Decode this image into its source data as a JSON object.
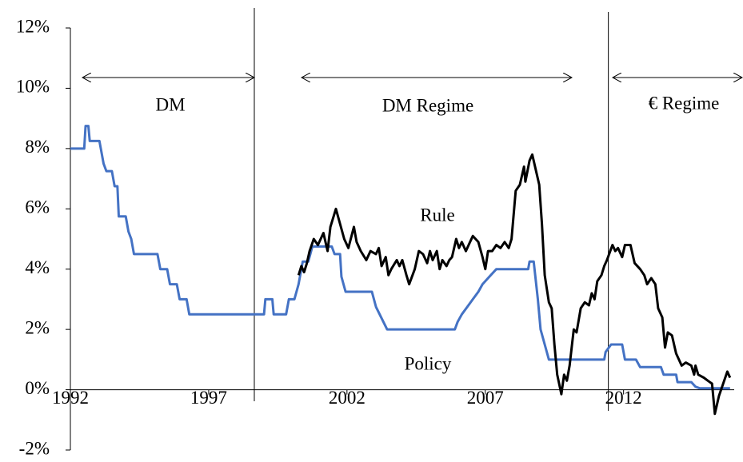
{
  "chart_data": {
    "type": "line",
    "xlim": [
      1992,
      2016
    ],
    "xticks": [
      1992,
      1997,
      2002,
      2007,
      2012
    ],
    "ylim": [
      -2,
      12
    ],
    "yticks": [
      {
        "value": -2,
        "label": "-2%"
      },
      {
        "value": 0,
        "label": "0%"
      },
      {
        "value": 2,
        "label": "2%"
      },
      {
        "value": 4,
        "label": "4%"
      },
      {
        "value": 6,
        "label": "6%"
      },
      {
        "value": 8,
        "label": "8%"
      },
      {
        "value": 10,
        "label": "10%"
      },
      {
        "value": 12,
        "label": "12%"
      }
    ],
    "annotations": [
      "DM",
      "DM Regime",
      "€ Regime",
      "Rule",
      "Policy"
    ],
    "vlines": [
      1998.65,
      2011.45
    ],
    "series": [
      {
        "name": "Policy",
        "color": "#4472c4",
        "x": [
          1992.0,
          1992.5,
          1992.55,
          1992.65,
          1992.7,
          1993.05,
          1993.2,
          1993.3,
          1993.5,
          1993.6,
          1993.7,
          1993.75,
          1994.0,
          1994.1,
          1994.2,
          1994.3,
          1995.15,
          1995.25,
          1995.5,
          1995.6,
          1995.85,
          1995.95,
          1996.2,
          1996.3,
          1999.0,
          1999.05,
          1999.3,
          1999.35,
          1999.8,
          1999.9,
          2000.1,
          2000.25,
          2000.4,
          2000.6,
          2000.75,
          2001.45,
          2001.55,
          2001.75,
          2001.8,
          2001.95,
          2002.9,
          2003.05,
          2003.45,
          2005.9,
          2006.0,
          2006.15,
          2006.35,
          2006.55,
          2006.75,
          2006.9,
          2007.15,
          2007.4,
          2008.55,
          2008.6,
          2008.75,
          2008.9,
          2009.0,
          2009.15,
          2009.3,
          2011.3,
          2011.35,
          2011.55,
          2011.95,
          2012.05,
          2012.45,
          2012.6,
          2013.35,
          2013.45,
          2013.9,
          2013.95,
          2014.45,
          2014.6,
          2014.75,
          2015.85
        ],
        "values": [
          8,
          8,
          8.75,
          8.75,
          8.25,
          8.25,
          7.5,
          7.25,
          7.25,
          6.75,
          6.75,
          5.75,
          5.75,
          5.25,
          5.0,
          4.5,
          4.5,
          4.0,
          4.0,
          3.5,
          3.5,
          3.0,
          3.0,
          2.5,
          2.5,
          3.0,
          3.0,
          2.5,
          2.5,
          3.0,
          3.0,
          3.5,
          4.25,
          4.25,
          4.75,
          4.75,
          4.5,
          4.5,
          3.75,
          3.25,
          3.25,
          2.75,
          2.0,
          2.0,
          2.25,
          2.5,
          2.75,
          3.0,
          3.25,
          3.5,
          3.75,
          4.0,
          4.0,
          4.25,
          4.25,
          3.0,
          2.0,
          1.5,
          1.0,
          1.0,
          1.25,
          1.5,
          1.5,
          1.0,
          1.0,
          0.75,
          0.75,
          0.5,
          0.5,
          0.25,
          0.25,
          0.1,
          0.05,
          0.05
        ]
      },
      {
        "name": "Rule",
        "color": "#000000",
        "x": [
          2000.25,
          2000.35,
          2000.45,
          2000.55,
          2000.65,
          2000.8,
          2000.95,
          2001.15,
          2001.3,
          2001.4,
          2001.6,
          2001.75,
          2001.9,
          2002.05,
          2002.25,
          2002.35,
          2002.5,
          2002.7,
          2002.85,
          2003.05,
          2003.15,
          2003.25,
          2003.4,
          2003.5,
          2003.6,
          2003.8,
          2003.9,
          2004.0,
          2004.15,
          2004.25,
          2004.45,
          2004.6,
          2004.75,
          2004.9,
          2005.0,
          2005.1,
          2005.25,
          2005.35,
          2005.45,
          2005.6,
          2005.7,
          2005.8,
          2005.95,
          2006.05,
          2006.15,
          2006.3,
          2006.45,
          2006.55,
          2006.75,
          2006.9,
          2007.0,
          2007.1,
          2007.25,
          2007.4,
          2007.55,
          2007.7,
          2007.85,
          2007.95,
          2008.1,
          2008.25,
          2008.4,
          2008.45,
          2008.6,
          2008.7,
          2008.8,
          2008.95,
          2009.05,
          2009.15,
          2009.3,
          2009.4,
          2009.5,
          2009.6,
          2009.75,
          2009.85,
          2009.95,
          2010.05,
          2010.2,
          2010.3,
          2010.45,
          2010.6,
          2010.75,
          2010.85,
          2010.95,
          2011.05,
          2011.2,
          2011.3,
          2011.4,
          2011.6,
          2011.7,
          2011.8,
          2011.95,
          2012.05,
          2012.25,
          2012.4,
          2012.6,
          2012.75,
          2012.85,
          2013.0,
          2013.15,
          2013.25,
          2013.4,
          2013.5,
          2013.6,
          2013.75,
          2013.9,
          2014.1,
          2014.25,
          2014.45,
          2014.55,
          2014.6,
          2014.7,
          2014.9,
          2015.05,
          2015.2,
          2015.3,
          2015.45,
          2015.6,
          2015.75,
          2015.85
        ],
        "values": [
          3.8,
          4.1,
          3.9,
          4.2,
          4.6,
          5.0,
          4.8,
          5.2,
          4.6,
          5.4,
          6.0,
          5.5,
          5.0,
          4.7,
          5.4,
          4.9,
          4.6,
          4.3,
          4.6,
          4.5,
          4.7,
          4.1,
          4.4,
          3.8,
          4.0,
          4.3,
          4.1,
          4.3,
          3.8,
          3.5,
          4.0,
          4.6,
          4.5,
          4.2,
          4.6,
          4.3,
          4.6,
          4.0,
          4.3,
          4.1,
          4.3,
          4.4,
          5.0,
          4.7,
          4.9,
          4.6,
          4.9,
          5.1,
          4.9,
          4.4,
          4.0,
          4.6,
          4.6,
          4.8,
          4.7,
          4.9,
          4.7,
          5.0,
          6.6,
          6.8,
          7.4,
          6.9,
          7.6,
          7.8,
          7.4,
          6.8,
          5.5,
          3.8,
          2.9,
          2.7,
          1.5,
          0.5,
          -0.15,
          0.5,
          0.3,
          0.8,
          2.0,
          1.9,
          2.7,
          2.9,
          2.8,
          3.2,
          3.0,
          3.6,
          3.8,
          4.1,
          4.3,
          4.8,
          4.6,
          4.7,
          4.4,
          4.8,
          4.8,
          4.2,
          4.0,
          3.8,
          3.5,
          3.7,
          3.5,
          2.7,
          2.4,
          1.4,
          1.9,
          1.8,
          1.2,
          0.8,
          0.9,
          0.8,
          0.5,
          0.8,
          0.5,
          0.4,
          0.3,
          0.2,
          -0.8,
          -0.2,
          0.2,
          0.6,
          0.4
        ]
      }
    ]
  }
}
